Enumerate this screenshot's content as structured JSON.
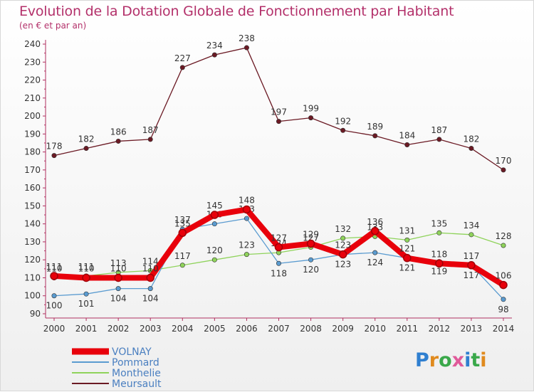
{
  "title": "Evolution de la Dotation Globale de Fonctionnement par Habitant",
  "subtitle": "(en € et par an)",
  "logo": {
    "text": "Proxiti",
    "colors": [
      "#2f7fd0",
      "#e08a1e",
      "#3aa84a",
      "#e05a9a",
      "#2f7fd0",
      "#3aa84a",
      "#e08a1e"
    ]
  },
  "chart_data": {
    "type": "line",
    "x": [
      2000,
      2001,
      2002,
      2003,
      2004,
      2005,
      2006,
      2007,
      2008,
      2009,
      2010,
      2011,
      2012,
      2013,
      2014
    ],
    "ylim": [
      90,
      240
    ],
    "yticks": [
      90,
      100,
      110,
      120,
      130,
      140,
      150,
      160,
      170,
      180,
      190,
      200,
      210,
      220,
      230,
      240
    ],
    "grid": false,
    "legend": "bottom",
    "series": [
      {
        "name": "Meursault",
        "color": "#6b1a24",
        "values": [
          178,
          182,
          186,
          187,
          227,
          234,
          238,
          197,
          199,
          192,
          189,
          184,
          187,
          182,
          170
        ]
      },
      {
        "name": "Monthelie",
        "color": "#8fd35b",
        "values": [
          110,
          111,
          113,
          114,
          117,
          120,
          123,
          124,
          127,
          132,
          133,
          131,
          135,
          134,
          128
        ]
      },
      {
        "name": "Pommard",
        "color": "#5a9bd0",
        "values": [
          100,
          101,
          104,
          104,
          137,
          140,
          143,
          118,
          120,
          123,
          124,
          121,
          119,
          117,
          98
        ]
      },
      {
        "name": "VOLNAY",
        "color": "#e8000b",
        "values": [
          111,
          110,
          110,
          110,
          135,
          145,
          148,
          127,
          129,
          123,
          136,
          121,
          118,
          117,
          106
        ]
      }
    ]
  }
}
